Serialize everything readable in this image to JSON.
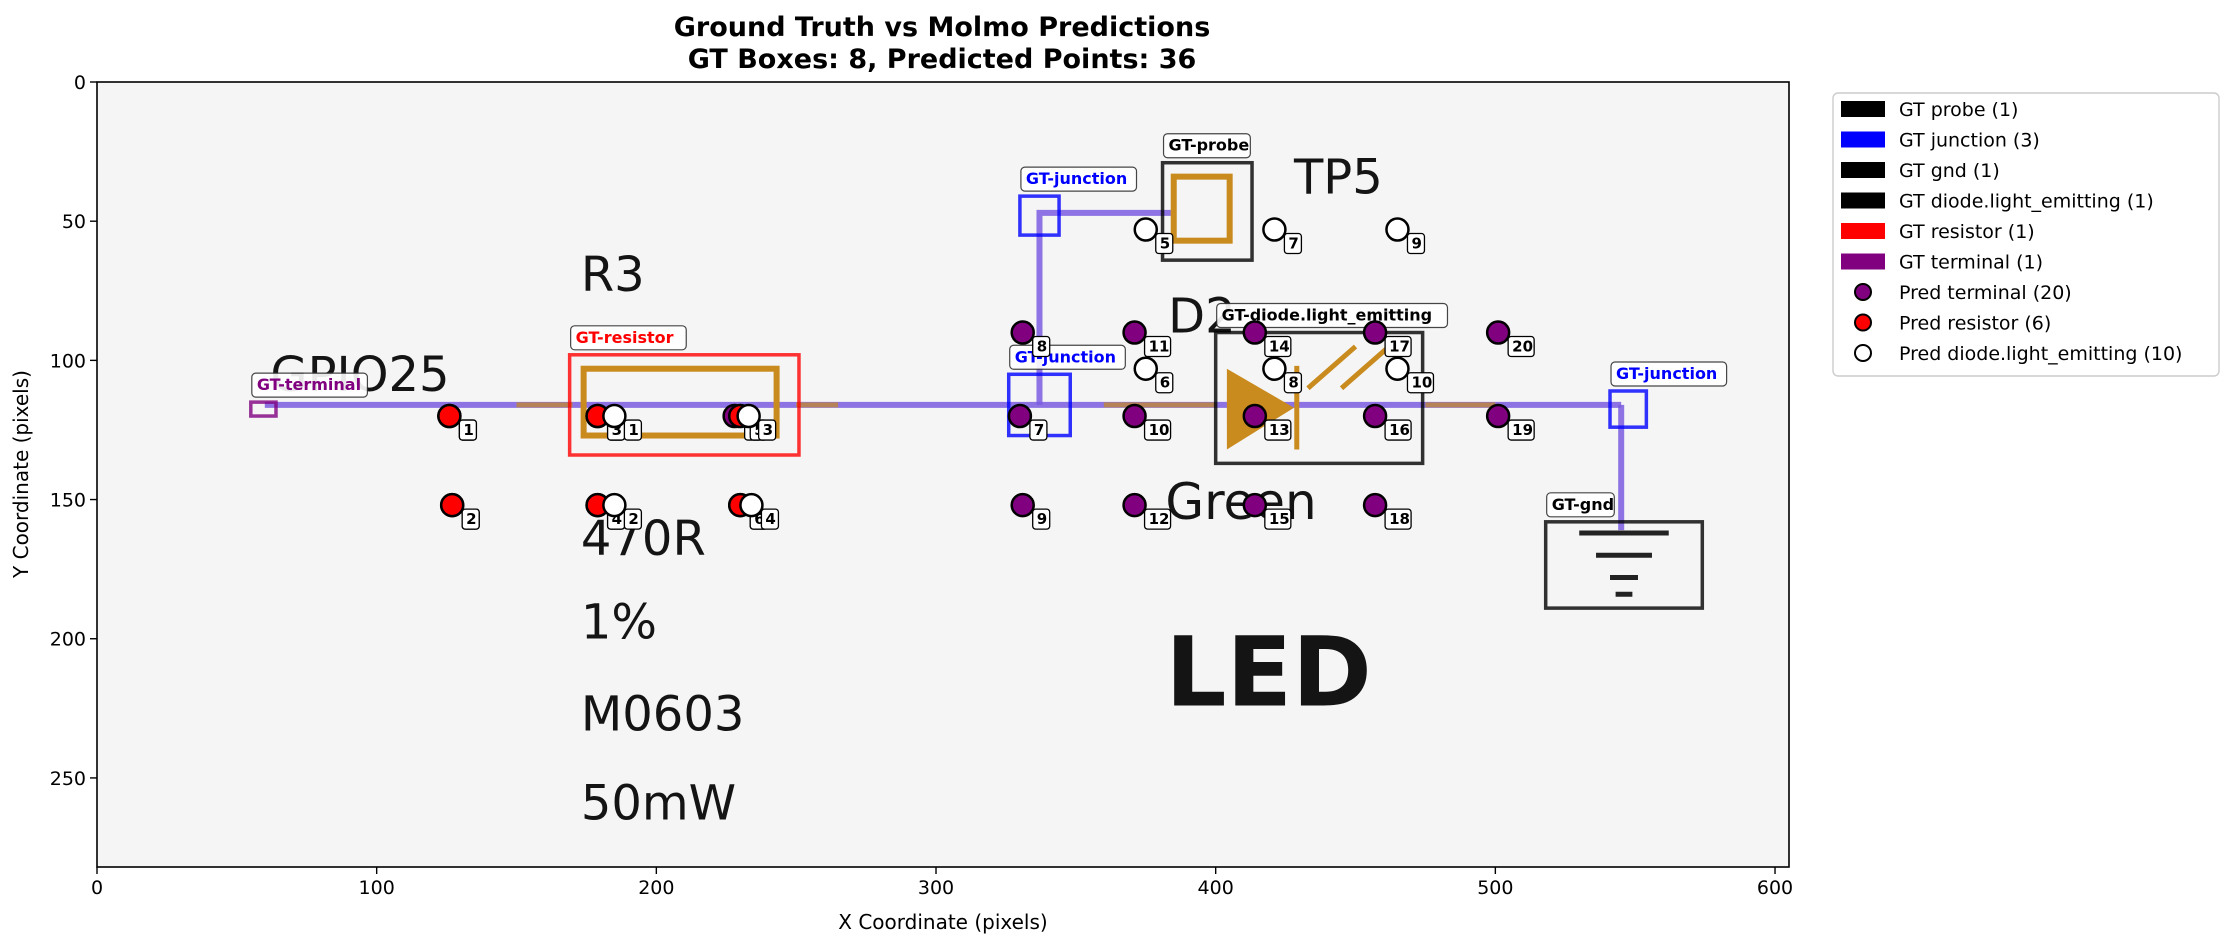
{
  "chart_data": {
    "type": "scatter",
    "title": "Ground Truth vs Molmo Predictions",
    "subtitle": "GT Boxes: 8, Predicted Points: 36",
    "xlabel": "X Coordinate (pixels)",
    "ylabel": "Y Coordinate (pixels)",
    "xlim": [
      0,
      605
    ],
    "ylim": [
      282,
      0
    ],
    "xticks": [
      0,
      100,
      200,
      300,
      400,
      500,
      600
    ],
    "yticks": [
      0,
      50,
      100,
      150,
      200,
      250
    ],
    "grid": false,
    "legend_position": "outside-right",
    "background_image_text": [
      "TP5",
      "R3",
      "D2",
      "GPIO25",
      "470R",
      "1%",
      "M0603",
      "50mW",
      "Green",
      "LED"
    ],
    "gt_boxes": [
      {
        "label": "GT-terminal",
        "category": "terminal",
        "color": "#800080",
        "x0": 55,
        "y0": 115,
        "x1": 64,
        "y1": 120
      },
      {
        "label": "GT-resistor",
        "category": "resistor",
        "color": "#ff0000",
        "x0": 169,
        "y0": 98,
        "x1": 251,
        "y1": 134
      },
      {
        "label": "GT-junction",
        "category": "junction",
        "color": "#0000ff",
        "x0": 330,
        "y0": 41,
        "x1": 344,
        "y1": 55
      },
      {
        "label": "GT-probe",
        "category": "probe",
        "color": "#000000",
        "x0": 381,
        "y0": 29,
        "x1": 413,
        "y1": 64
      },
      {
        "label": "GT-junction",
        "category": "junction",
        "color": "#0000ff",
        "x0": 326,
        "y0": 105,
        "x1": 348,
        "y1": 127
      },
      {
        "label": "GT-diode.light_emitting",
        "category": "diode.light_emitting",
        "color": "#000000",
        "x0": 400,
        "y0": 90,
        "x1": 474,
        "y1": 137
      },
      {
        "label": "GT-junction",
        "category": "junction",
        "color": "#0000ff",
        "x0": 541,
        "y0": 111,
        "x1": 554,
        "y1": 124
      },
      {
        "label": "GT-gnd",
        "category": "gnd",
        "color": "#000000",
        "x0": 518,
        "y0": 158,
        "x1": 574,
        "y1": 189
      }
    ],
    "series": [
      {
        "name": "Pred terminal (20)",
        "color": "#800080",
        "points": [
          {
            "id": "1",
            "x": 126,
            "y": 120
          },
          {
            "id": "2",
            "x": 127,
            "y": 152
          },
          {
            "id": "3",
            "x": 228,
            "y": 120
          },
          {
            "id": "4",
            "x": 230,
            "y": 152
          },
          {
            "id": "7",
            "x": 330,
            "y": 120
          },
          {
            "id": "8",
            "x": 331,
            "y": 90
          },
          {
            "id": "9",
            "x": 331,
            "y": 152
          },
          {
            "id": "10",
            "x": 371,
            "y": 120
          },
          {
            "id": "11",
            "x": 371,
            "y": 90
          },
          {
            "id": "12",
            "x": 371,
            "y": 152
          },
          {
            "id": "13",
            "x": 414,
            "y": 120
          },
          {
            "id": "14",
            "x": 414,
            "y": 90
          },
          {
            "id": "15",
            "x": 414,
            "y": 152
          },
          {
            "id": "16",
            "x": 457,
            "y": 120
          },
          {
            "id": "17",
            "x": 457,
            "y": 90
          },
          {
            "id": "18",
            "x": 457,
            "y": 152
          },
          {
            "id": "19",
            "x": 501,
            "y": 120
          },
          {
            "id": "20",
            "x": 501,
            "y": 90
          },
          {
            "id": "5",
            "x": 179,
            "y": 120
          },
          {
            "id": "6",
            "x": 179,
            "y": 152
          }
        ]
      },
      {
        "name": "Pred resistor (6)",
        "color": "#ff0000",
        "points": [
          {
            "id": "1",
            "x": 126,
            "y": 120
          },
          {
            "id": "2",
            "x": 127,
            "y": 152
          },
          {
            "id": "3",
            "x": 179,
            "y": 120
          },
          {
            "id": "4",
            "x": 179,
            "y": 152
          },
          {
            "id": "5",
            "x": 230,
            "y": 120
          },
          {
            "id": "6",
            "x": 230,
            "y": 152
          }
        ]
      },
      {
        "name": "Pred diode.light_emitting (10)",
        "color": "#ffffff",
        "points": [
          {
            "id": "1",
            "x": 185,
            "y": 120
          },
          {
            "id": "2",
            "x": 185,
            "y": 152
          },
          {
            "id": "3",
            "x": 233,
            "y": 120
          },
          {
            "id": "4",
            "x": 234,
            "y": 152
          },
          {
            "id": "5",
            "x": 375,
            "y": 53
          },
          {
            "id": "6",
            "x": 375,
            "y": 103
          },
          {
            "id": "7",
            "x": 421,
            "y": 53
          },
          {
            "id": "8",
            "x": 421,
            "y": 103
          },
          {
            "id": "9",
            "x": 465,
            "y": 53
          },
          {
            "id": "10",
            "x": 465,
            "y": 103
          }
        ]
      }
    ],
    "legend": [
      {
        "label": "GT probe (1)",
        "kind": "patch",
        "color": "#000000"
      },
      {
        "label": "GT junction (3)",
        "kind": "patch",
        "color": "#0000ff"
      },
      {
        "label": "GT gnd (1)",
        "kind": "patch",
        "color": "#000000"
      },
      {
        "label": "GT diode.light_emitting (1)",
        "kind": "patch",
        "color": "#000000"
      },
      {
        "label": "GT resistor (1)",
        "kind": "patch",
        "color": "#ff0000"
      },
      {
        "label": "GT terminal (1)",
        "kind": "patch",
        "color": "#800080"
      },
      {
        "label": "Pred terminal (20)",
        "kind": "marker",
        "color": "#800080"
      },
      {
        "label": "Pred resistor (6)",
        "kind": "marker",
        "color": "#ff0000"
      },
      {
        "label": "Pred diode.light_emitting (10)",
        "kind": "marker",
        "color": "#ffffff"
      }
    ]
  }
}
